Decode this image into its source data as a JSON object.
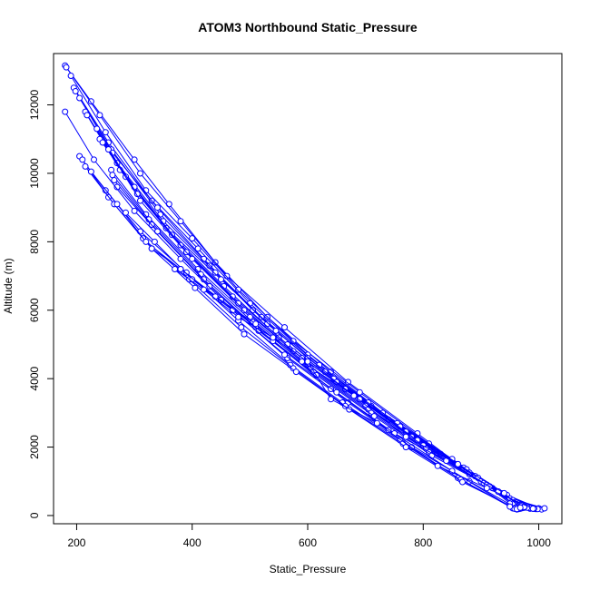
{
  "chart_data": {
    "type": "line",
    "title": "ATOM3 Northbound Static_Pressure",
    "xlabel": "Static_Pressure",
    "ylabel": "Altitude (m)",
    "xlim": [
      160,
      1040
    ],
    "ylim": [
      -240,
      13500
    ],
    "x_ticks": [
      200,
      400,
      600,
      800,
      1000
    ],
    "y_ticks": [
      0,
      2000,
      4000,
      6000,
      8000,
      10000,
      12000
    ],
    "x_tick_labels": [
      "200",
      "400",
      "600",
      "800",
      "1000"
    ],
    "y_tick_labels": [
      "0",
      "2000",
      "4000",
      "6000",
      "8000",
      "10000",
      "12000"
    ],
    "grid": false,
    "legend": "none",
    "series_color": "#0000ff",
    "markers": "open-circle",
    "series": [
      {
        "x": [
          180,
          225,
          300,
          360,
          440,
          530,
          640,
          760,
          880,
          975
        ],
        "y": [
          13150,
          12100,
          10400,
          9100,
          7400,
          5800,
          4200,
          2600,
          1200,
          230
        ]
      },
      {
        "x": [
          182,
          240,
          310,
          380,
          460,
          560,
          670,
          790,
          900,
          985
        ],
        "y": [
          13100,
          11700,
          10000,
          8600,
          7000,
          5500,
          3900,
          2400,
          1000,
          200
        ]
      },
      {
        "x": [
          190,
          250,
          320,
          400,
          480,
          575,
          690,
          810,
          920,
          995
        ],
        "y": [
          12850,
          11200,
          9500,
          8100,
          6600,
          5100,
          3600,
          2100,
          800,
          190
        ]
      },
      {
        "x": [
          195,
          255,
          330,
          410,
          500,
          600,
          710,
          830,
          935,
          1000
        ],
        "y": [
          12500,
          10900,
          9200,
          7800,
          6200,
          4700,
          3200,
          1800,
          650,
          210
        ]
      },
      {
        "x": [
          198,
          260,
          345,
          430,
          520,
          620,
          730,
          850,
          945,
          1005
        ],
        "y": [
          12400,
          10700,
          8800,
          7300,
          5800,
          4400,
          3000,
          1650,
          600,
          180
        ]
      },
      {
        "x": [
          205,
          262,
          340,
          420,
          505,
          600,
          705,
          820,
          930,
          990
        ],
        "y": [
          12200,
          10600,
          9000,
          7500,
          6000,
          4600,
          3300,
          1900,
          700,
          200
        ]
      },
      {
        "x": [
          215,
          270,
          350,
          440,
          530,
          630,
          740,
          860,
          950,
          1010
        ],
        "y": [
          11800,
          10300,
          8600,
          7100,
          5600,
          4200,
          2800,
          1500,
          500,
          210
        ]
      },
      {
        "x": [
          218,
          275,
          355,
          450,
          545,
          645,
          755,
          870,
          955,
          998
        ],
        "y": [
          11700,
          10100,
          8400,
          6900,
          5400,
          4000,
          2700,
          1400,
          450,
          190
        ]
      },
      {
        "x": [
          235,
          285,
          365,
          455,
          550,
          650,
          760,
          875,
          960,
          992
        ],
        "y": [
          11300,
          9900,
          8200,
          6700,
          5200,
          3900,
          2600,
          1350,
          400,
          200
        ]
      },
      {
        "x": [
          240,
          300,
          380,
          470,
          565,
          665,
          770,
          880,
          962,
          985
        ],
        "y": [
          11000,
          9600,
          7900,
          6400,
          5000,
          3700,
          2450,
          1250,
          380,
          220
        ]
      },
      {
        "x": [
          245,
          305,
          390,
          480,
          575,
          680,
          780,
          890,
          965,
          980
        ],
        "y": [
          10900,
          9400,
          7700,
          6200,
          4800,
          3500,
          2300,
          1150,
          350,
          230
        ]
      },
      {
        "x": [
          255,
          310,
          400,
          490,
          590,
          690,
          790,
          895,
          968,
          975
        ],
        "y": [
          10700,
          9200,
          7500,
          6000,
          4600,
          3400,
          2200,
          1100,
          320,
          240
        ]
      },
      {
        "x": [
          260,
          320,
          410,
          500,
          600,
          700,
          800,
          900,
          970,
          972
        ],
        "y": [
          10100,
          8800,
          7200,
          5800,
          4400,
          3200,
          2050,
          1000,
          300,
          220
        ]
      },
      {
        "x": [
          262,
          325,
          415,
          505,
          605,
          705,
          805,
          905,
          958,
          968
        ],
        "y": [
          9950,
          8650,
          7050,
          5650,
          4300,
          3100,
          1950,
          950,
          330,
          200
        ]
      },
      {
        "x": [
          265,
          330,
          420,
          510,
          610,
          710,
          810,
          910,
          955,
          965
        ],
        "y": [
          9800,
          8500,
          6900,
          5500,
          4200,
          3000,
          1850,
          900,
          340,
          190
        ]
      },
      {
        "x": [
          270,
          340,
          430,
          515,
          615,
          715,
          815,
          915,
          950,
          962
        ],
        "y": [
          9600,
          8300,
          6700,
          5400,
          4100,
          2900,
          1750,
          850,
          350,
          180
        ]
      },
      {
        "x": [
          180,
          230,
          300,
          380,
          470,
          565,
          670,
          780,
          880,
          960
        ],
        "y": [
          11800,
          10400,
          8900,
          7500,
          6000,
          4600,
          3300,
          2000,
          1000,
          230
        ]
      },
      {
        "x": [
          205,
          250,
          310,
          390,
          480,
          570,
          660,
          760,
          860,
          955
        ],
        "y": [
          10500,
          9500,
          8300,
          7100,
          5700,
          4400,
          3300,
          2200,
          1100,
          210
        ]
      },
      {
        "x": [
          210,
          255,
          315,
          395,
          485,
          575,
          665,
          765,
          865,
          958
        ],
        "y": [
          10400,
          9300,
          8100,
          6900,
          5500,
          4300,
          3200,
          2100,
          1050,
          200
        ]
      },
      {
        "x": [
          215,
          265,
          330,
          405,
          490,
          580,
          672,
          770,
          868,
          962
        ],
        "y": [
          10200,
          9100,
          7800,
          6650,
          5300,
          4200,
          3100,
          2000,
          980,
          190
        ]
      },
      {
        "x": [
          225,
          270,
          320,
          380,
          450,
          540,
          640,
          740,
          850,
          950
        ],
        "y": [
          10050,
          9100,
          8000,
          7200,
          6300,
          5100,
          3700,
          2500,
          1300,
          260
        ]
      },
      {
        "x": [
          285,
          335,
          400,
          470,
          560,
          650,
          750,
          840,
          930,
          975
        ],
        "y": [
          8850,
          8000,
          6900,
          6000,
          4700,
          3600,
          2400,
          1600,
          700,
          250
        ]
      },
      {
        "x": [
          330,
          380,
          440,
          510,
          590,
          680,
          770,
          860,
          940,
          968
        ],
        "y": [
          7800,
          7200,
          6400,
          5600,
          4500,
          3500,
          2300,
          1500,
          650,
          230
        ]
      },
      {
        "x": [
          370,
          420,
          480,
          540,
          600,
          640,
          720,
          825,
          910,
          990
        ],
        "y": [
          7200,
          6600,
          5800,
          5200,
          4500,
          3400,
          2700,
          1450,
          800,
          200
        ]
      }
    ]
  }
}
